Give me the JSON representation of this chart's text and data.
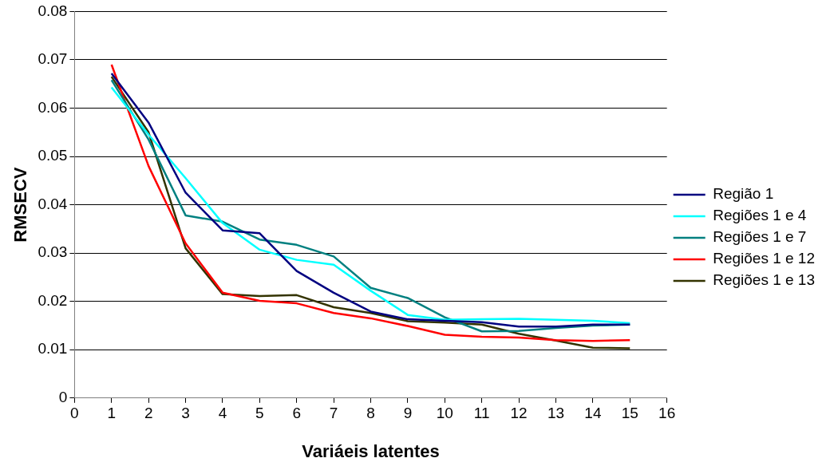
{
  "chart_data": {
    "type": "line",
    "xlabel": "Variáeis latentes",
    "ylabel": "RMSECV",
    "x": [
      1,
      2,
      3,
      4,
      5,
      6,
      7,
      8,
      9,
      10,
      11,
      12,
      13,
      14,
      15
    ],
    "xlim": [
      0,
      16
    ],
    "xticks": [
      0,
      1,
      2,
      3,
      4,
      5,
      6,
      7,
      8,
      9,
      10,
      11,
      12,
      13,
      14,
      15,
      16
    ],
    "ylim": [
      0,
      0.08
    ],
    "yticks": [
      0,
      0.01,
      0.02,
      0.03,
      0.04,
      0.05,
      0.06,
      0.07,
      0.08
    ],
    "grid": "y",
    "legend": "right",
    "marker": "none",
    "line_style": "solid",
    "series": [
      {
        "name": "Região 1",
        "color": "#000080",
        "values": [
          0.0672,
          0.057,
          0.0425,
          0.0347,
          0.0341,
          0.0263,
          0.0218,
          0.0179,
          0.0163,
          0.016,
          0.0157,
          0.0148,
          0.0148,
          0.0152,
          0.0152
        ]
      },
      {
        "name": "Regiões 1 e 4",
        "color": "#00ffff",
        "values": [
          0.0643,
          0.0545,
          0.0455,
          0.0362,
          0.0307,
          0.0286,
          0.0276,
          0.0222,
          0.0172,
          0.0162,
          0.0163,
          0.0164,
          0.0162,
          0.016,
          0.0155
        ]
      },
      {
        "name": "Regiões 1 e 7",
        "color": "#008080",
        "values": [
          0.0658,
          0.0535,
          0.0378,
          0.0365,
          0.0328,
          0.0317,
          0.0293,
          0.0228,
          0.0207,
          0.0167,
          0.0138,
          0.0139,
          0.0145,
          0.015,
          0.0152
        ]
      },
      {
        "name": "Regiões 1 e 12",
        "color": "#ff0000",
        "values": [
          0.069,
          0.048,
          0.032,
          0.0218,
          0.0201,
          0.0196,
          0.0176,
          0.0165,
          0.0149,
          0.0131,
          0.0127,
          0.0125,
          0.012,
          0.0118,
          0.012
        ]
      },
      {
        "name": "Regiões 1 e 13",
        "color": "#333300",
        "values": [
          0.0665,
          0.055,
          0.031,
          0.0215,
          0.0211,
          0.0213,
          0.0188,
          0.0176,
          0.0159,
          0.0156,
          0.0152,
          0.0133,
          0.0119,
          0.0104,
          0.0103
        ]
      }
    ]
  }
}
